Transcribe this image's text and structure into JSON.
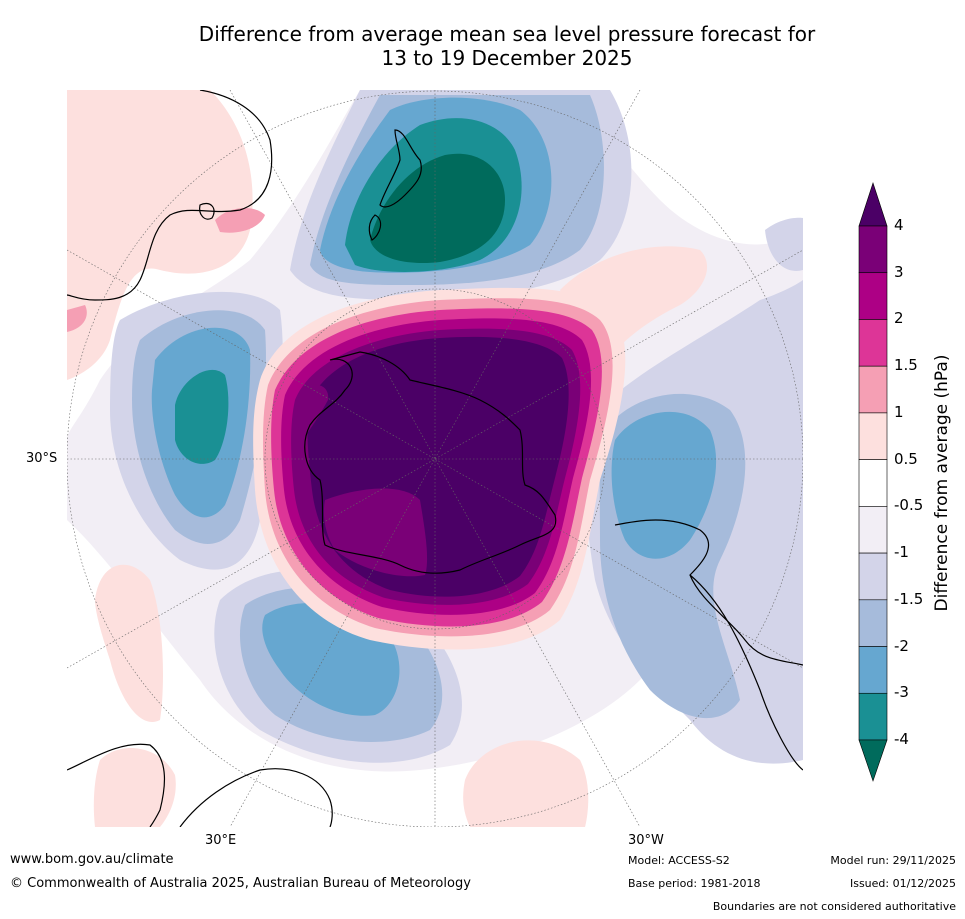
{
  "title": {
    "line1": "Difference from average mean sea level pressure forecast for",
    "line2": "13 to 19 December 2025"
  },
  "map_labels": {
    "lat_30s": "30°S",
    "lon_30e": "30°E",
    "lon_30w": "30°W"
  },
  "colorbar": {
    "label": "Difference from average (hPa)",
    "ticks": [
      "4",
      "3",
      "2",
      "1.5",
      "1",
      "0.5",
      "-0.5",
      "-1",
      "-1.5",
      "-2",
      "-3",
      "-4"
    ],
    "colors": [
      "#4b0066",
      "#7a0077",
      "#ad0085",
      "#dd3597",
      "#f59fb4",
      "#fde0de",
      "#ffffff",
      "#f2eef5",
      "#d3d4e9",
      "#a6bbdb",
      "#66a7d0",
      "#1a9094",
      "#006b5c"
    ]
  },
  "footer": {
    "website": "www.bom.gov.au/climate",
    "copyright": "© Commonwealth of Australia 2025, Australian Bureau of Meteorology",
    "model": "Model: ACCESS-S2",
    "base_period": "Base period: 1981-2018",
    "model_run": "Model run: 29/11/2025",
    "issued": "Issued: 01/12/2025",
    "disclaimer": "Boundaries are not considered authoritative"
  }
}
